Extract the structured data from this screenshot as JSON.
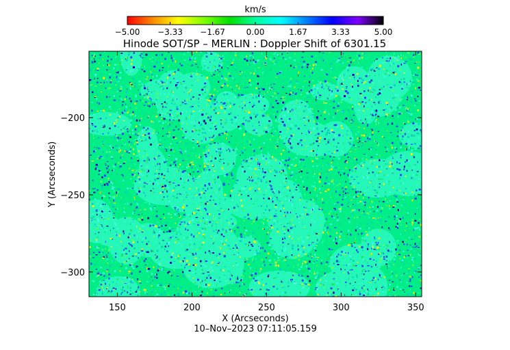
{
  "chart_data": {
    "type": "heatmap",
    "title": "Hinode SOT/SP – MERLIN : Doppler Shift of 6301.15",
    "xlabel": "X (Arcseconds)",
    "ylabel": "Y (Arcseconds)",
    "timestamp": "10–Nov–2023 07:11:05.159",
    "xlim": [
      131,
      354
    ],
    "ylim": [
      -316,
      -157
    ],
    "x_ticks": [
      150,
      200,
      250,
      300,
      350
    ],
    "x_tick_labels": [
      "150",
      "200",
      "250",
      "300",
      "350"
    ],
    "y_ticks": [
      -200,
      -250,
      -300
    ],
    "y_tick_labels": [
      "−200",
      "−250",
      "−300"
    ],
    "colorbar": {
      "label": "km/s",
      "range": [
        -5.0,
        5.0
      ],
      "ticks": [
        -5.0,
        -3.33,
        -1.67,
        0.0,
        1.67,
        3.33,
        5.0
      ],
      "tick_labels": [
        "−5.00",
        "−3.33",
        "−1.67",
        "0.00",
        "1.67",
        "3.33",
        "5.00"
      ],
      "colormap": [
        "#ff0000",
        "#ff8c00",
        "#ffff00",
        "#7fff00",
        "#00e000",
        "#00ffa0",
        "#00ffff",
        "#0080ff",
        "#0000ff",
        "#7f00ff",
        "#000000"
      ]
    },
    "field": {
      "description_colors": {
        "dominant": "#00ee88",
        "cell_centers": "#44ffe0",
        "lanes": "#2244ee",
        "strong_lanes": "#0000aa",
        "highlights": "#ffff00"
      }
    }
  }
}
